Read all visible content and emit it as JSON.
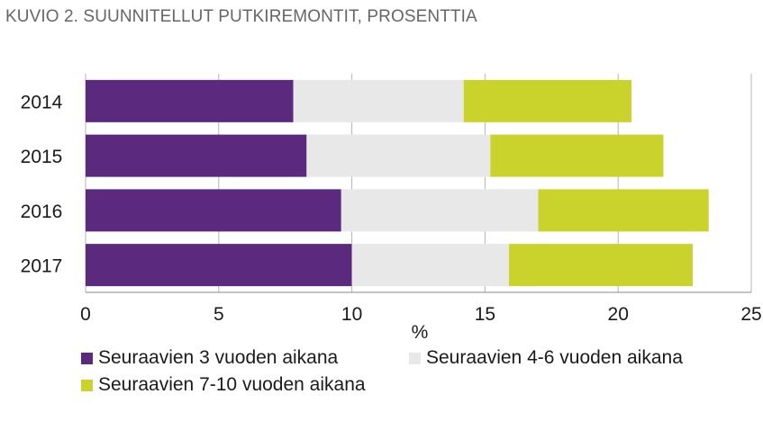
{
  "title": "KUVIO 2. SUUNNITELLUT PUTKIREMONTIT, PROSENTTIA",
  "chart_data": {
    "type": "bar",
    "orientation": "horizontal",
    "stacked": true,
    "title": "KUVIO 2. SUUNNITELLUT PUTKIREMONTIT, PROSENTTIA",
    "xlabel": "%",
    "ylabel": "",
    "xlim": [
      0,
      25
    ],
    "xticks": [
      0,
      5,
      10,
      15,
      20,
      25
    ],
    "categories": [
      "2014",
      "2015",
      "2016",
      "2017"
    ],
    "series": [
      {
        "name": "Seuraavien 3 vuoden aikana",
        "color": "#5b2a7e",
        "values": [
          7.8,
          8.3,
          9.6,
          10.0
        ]
      },
      {
        "name": "Seuraavien 4-6 vuoden aikana",
        "color": "#e8e8e8",
        "values": [
          6.4,
          6.9,
          7.4,
          5.9
        ]
      },
      {
        "name": "Seuraavien 7-10 vuoden aikana",
        "color": "#cad22c",
        "values": [
          6.3,
          6.5,
          6.4,
          6.9
        ]
      }
    ],
    "grid": "vertical",
    "legend_position": "bottom"
  }
}
